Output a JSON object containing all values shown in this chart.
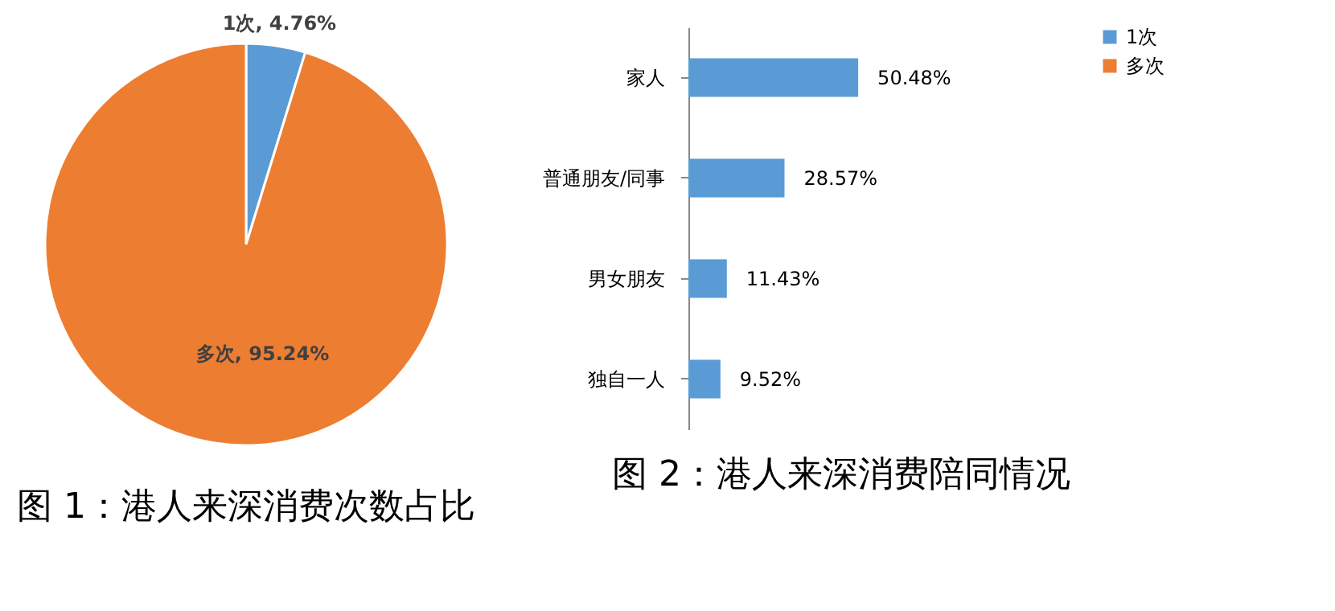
{
  "chart_data": [
    {
      "type": "pie",
      "title": "图 1：港人来深消费次数占比",
      "categories": [
        "1次",
        "多次"
      ],
      "values": [
        4.76,
        95.24
      ],
      "colors": [
        "#5b9bd5",
        "#ed7d31"
      ],
      "value_labels": [
        "1次, 4.76%",
        "多次, 95.24%"
      ],
      "legend": "right"
    },
    {
      "type": "bar",
      "orientation": "horizontal",
      "title": "图 2：港人来深消费陪同情况",
      "categories": [
        "家人",
        "普通朋友/同事",
        "男女朋友",
        "独自一人"
      ],
      "values": [
        50.48,
        28.57,
        11.43,
        9.52
      ],
      "color": "#5b9bd5",
      "value_labels": [
        "50.48%",
        "28.57%",
        "11.43%",
        "9.52%"
      ]
    }
  ]
}
